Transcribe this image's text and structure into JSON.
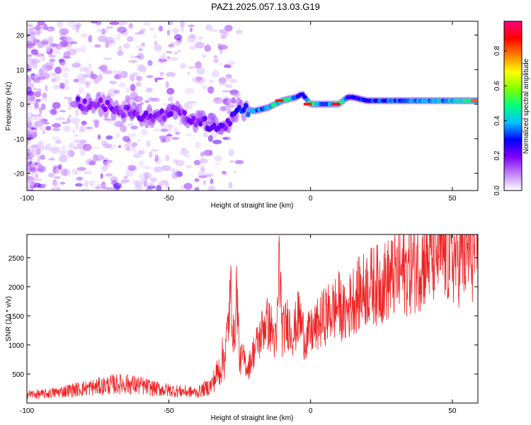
{
  "title": "PAZ1.2025.057.13.03.G19",
  "chart_data": [
    {
      "type": "heatmap",
      "xlabel": "Height of straight line (km)",
      "ylabel": "Frequency (Hz)",
      "xlim": [
        -100,
        59
      ],
      "ylim": [
        -25,
        24
      ],
      "xticks": [
        -100,
        -50,
        0,
        50
      ],
      "yticks": [
        -20,
        -10,
        0,
        10,
        20
      ],
      "colorbar": {
        "label": "Normalized spectral amplitude",
        "range": [
          0.0,
          0.97
        ],
        "ticks": [
          0.0,
          0.2,
          0.4,
          0.6,
          0.8
        ],
        "colors": [
          "#ffffff",
          "#c080ff",
          "#8000ff",
          "#0000ff",
          "#00c0ff",
          "#00ff80",
          "#80ff00",
          "#ffff00",
          "#ff8000",
          "#ff0000",
          "#ff0080"
        ]
      },
      "ridge": {
        "x": [
          -82,
          -75,
          -70,
          -65,
          -60,
          -55,
          -50,
          -45,
          -40,
          -35,
          -30,
          -25,
          -20,
          -15,
          -10,
          -5,
          -3,
          0,
          5,
          10,
          13,
          15,
          20,
          30,
          40,
          50,
          59
        ],
        "y": [
          0,
          0,
          -1,
          -2,
          -3,
          -4,
          -2,
          -3,
          -5,
          -6,
          -6,
          -1,
          -2,
          -1,
          1,
          2,
          3,
          0,
          0,
          0,
          2,
          2,
          1,
          1,
          1,
          1,
          1
        ],
        "amp": [
          0.35,
          0.3,
          0.35,
          0.3,
          0.35,
          0.3,
          0.35,
          0.3,
          0.35,
          0.4,
          0.35,
          0.5,
          0.65,
          0.7,
          0.85,
          0.6,
          0.5,
          0.85,
          0.6,
          0.9,
          0.55,
          0.5,
          0.55,
          0.6,
          0.65,
          0.7,
          0.8
        ]
      }
    },
    {
      "type": "line",
      "xlabel": "Height of straight line (km)",
      "ylabel": "SNR (10 * v/v)",
      "xlim": [
        -100,
        59
      ],
      "ylim": [
        0,
        2900
      ],
      "xticks": [
        -100,
        -50,
        0,
        50
      ],
      "yticks": [
        500,
        1000,
        1500,
        2000,
        2500
      ],
      "color": "#ee2222",
      "series": [
        {
          "x": [
            -100,
            -95,
            -90,
            -85,
            -80,
            -75,
            -70,
            -65,
            -60,
            -55,
            -50,
            -45,
            -40,
            -35,
            -32,
            -30,
            -28,
            -27,
            -26,
            -25,
            -24,
            -22,
            -20,
            -18,
            -16,
            -14,
            -12,
            -11,
            -10,
            -8,
            -6,
            -4,
            -2,
            0,
            2,
            5,
            8,
            10,
            12,
            15,
            18,
            20,
            25,
            30,
            35,
            40,
            45,
            50,
            55,
            59
          ],
          "y": [
            150,
            150,
            180,
            220,
            250,
            280,
            320,
            330,
            300,
            250,
            220,
            200,
            180,
            300,
            600,
            900,
            1900,
            1000,
            2000,
            700,
            800,
            600,
            900,
            1100,
            1400,
            1300,
            1000,
            2500,
            1200,
            1400,
            1200,
            1500,
            1100,
            1200,
            1300,
            1500,
            1600,
            1700,
            1500,
            1800,
            1900,
            2000,
            2050,
            2200,
            2300,
            2450,
            2600,
            2500,
            2550,
            2650
          ]
        }
      ]
    }
  ]
}
